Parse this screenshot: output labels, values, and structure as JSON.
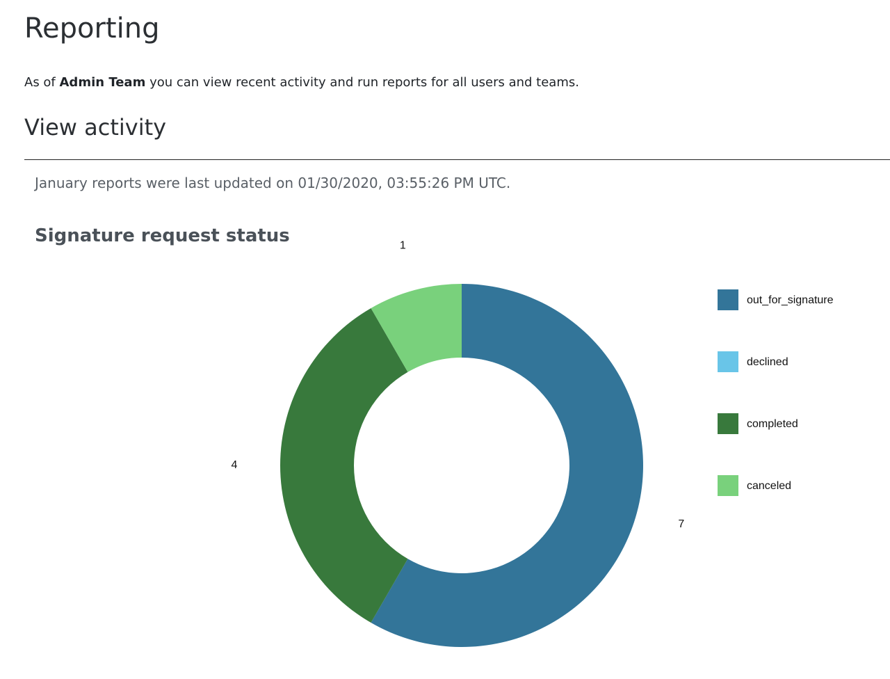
{
  "header": {
    "title": "Reporting"
  },
  "intro": {
    "before": "As of",
    "team": "Admin Team",
    "after": "you can view recent activity and run reports for all users and teams."
  },
  "section": {
    "title": "View activity",
    "note": "January reports were last updated on 01/30/2020, 03:55:26 PM UTC."
  },
  "chart_data": {
    "type": "donut",
    "title": "Signature request status",
    "categories": [
      "out_for_signature",
      "declined",
      "completed",
      "canceled"
    ],
    "values": [
      7,
      0,
      4,
      1
    ],
    "colors": [
      "#337599",
      "#69c5e8",
      "#38793c",
      "#79d17c"
    ],
    "legend": "right"
  }
}
